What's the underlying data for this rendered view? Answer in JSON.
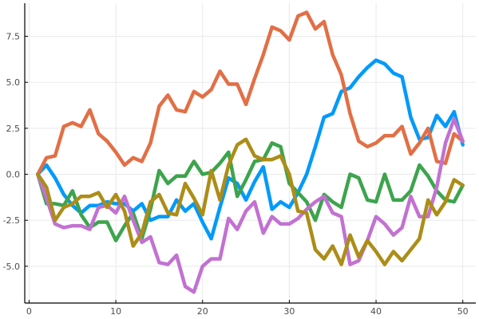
{
  "chart_data": {
    "type": "line",
    "title": "",
    "xlabel": "",
    "ylabel": "",
    "xlim": [
      -0.5,
      51.5
    ],
    "ylim": [
      -7.0,
      9.3
    ],
    "grid": true,
    "legend": "none",
    "x_ticks": [
      {
        "value": 0,
        "label": "0"
      },
      {
        "value": 10,
        "label": "10"
      },
      {
        "value": 20,
        "label": "20"
      },
      {
        "value": 30,
        "label": "30"
      },
      {
        "value": 40,
        "label": "40"
      },
      {
        "value": 50,
        "label": "50"
      }
    ],
    "y_ticks": [
      {
        "value": -5.0,
        "label": "-5.0"
      },
      {
        "value": -2.5,
        "label": "-2.5"
      },
      {
        "value": 0.0,
        "label": "0.0"
      },
      {
        "value": 2.5,
        "label": "2.5"
      },
      {
        "value": 5.0,
        "label": "5.0"
      },
      {
        "value": 7.5,
        "label": "7.5"
      }
    ],
    "x": [
      1,
      2,
      3,
      4,
      5,
      6,
      7,
      8,
      9,
      10,
      11,
      12,
      13,
      14,
      15,
      16,
      17,
      18,
      19,
      20,
      21,
      22,
      23,
      24,
      25,
      26,
      27,
      28,
      29,
      30,
      31,
      32,
      33,
      34,
      35,
      36,
      37,
      38,
      39,
      40,
      41,
      42,
      43,
      44,
      45,
      46,
      47,
      48,
      49,
      50
    ],
    "series": [
      {
        "color": "#009AFA",
        "values": [
          0.0,
          0.5,
          -0.2,
          -1.1,
          -1.7,
          -2.1,
          -1.7,
          -1.7,
          -1.5,
          -1.6,
          -1.6,
          -2.0,
          -1.6,
          -2.5,
          -2.3,
          -2.3,
          -1.4,
          -2.0,
          -1.6,
          -2.6,
          -3.5,
          -1.8,
          -0.2,
          -0.5,
          -1.4,
          -0.4,
          0.4,
          -1.9,
          -1.5,
          -1.8,
          -1.0,
          0.0,
          1.5,
          3.1,
          3.3,
          4.5,
          4.7,
          5.3,
          5.8,
          6.2,
          6.0,
          5.5,
          5.3,
          3.1,
          1.9,
          2.0,
          3.2,
          2.6,
          3.4,
          1.6
        ]
      },
      {
        "color": "#E26F46",
        "values": [
          0.0,
          0.9,
          1.0,
          2.6,
          2.8,
          2.6,
          3.5,
          2.2,
          1.8,
          1.2,
          0.5,
          0.9,
          0.7,
          1.7,
          3.7,
          4.3,
          3.5,
          3.4,
          4.5,
          4.2,
          4.6,
          5.6,
          4.9,
          4.9,
          3.8,
          5.2,
          6.5,
          8.0,
          7.8,
          7.3,
          8.6,
          8.8,
          7.9,
          8.3,
          6.5,
          5.4,
          3.3,
          1.8,
          1.5,
          1.7,
          2.1,
          2.1,
          2.6,
          1.1,
          1.7,
          2.5,
          0.7,
          0.6,
          2.2,
          1.8
        ]
      },
      {
        "color": "#3DA44D",
        "values": [
          0.0,
          -1.6,
          -1.6,
          -1.7,
          -0.9,
          -2.2,
          -2.9,
          -2.6,
          -2.6,
          -3.6,
          -2.8,
          -2.1,
          -3.5,
          -1.9,
          0.2,
          -0.5,
          -0.1,
          -0.1,
          0.7,
          0.0,
          0.1,
          0.6,
          1.2,
          -1.2,
          -0.3,
          0.7,
          0.8,
          1.7,
          1.5,
          -0.5,
          -1.0,
          -1.5,
          -2.5,
          -1.1,
          -1.5,
          -1.8,
          0.0,
          -0.2,
          -1.4,
          -1.5,
          0.0,
          -1.4,
          -1.4,
          -0.9,
          0.5,
          -0.1,
          -0.9,
          -1.4,
          -1.5,
          -0.6
        ]
      },
      {
        "color": "#C271D2",
        "values": [
          0.0,
          -1.3,
          -2.7,
          -2.9,
          -2.8,
          -2.8,
          -3.0,
          -1.8,
          -1.7,
          -2.1,
          -1.2,
          -2.5,
          -3.7,
          -3.4,
          -4.8,
          -4.9,
          -4.4,
          -6.1,
          -6.4,
          -5.0,
          -4.6,
          -4.6,
          -2.4,
          -3.0,
          -2.0,
          -1.5,
          -3.2,
          -2.3,
          -2.7,
          -2.7,
          -2.4,
          -1.9,
          -1.5,
          -1.2,
          -2.1,
          -2.3,
          -4.9,
          -4.7,
          -3.6,
          -2.3,
          -2.7,
          -3.3,
          -2.9,
          -1.2,
          -2.3,
          -2.3,
          -0.7,
          1.7,
          3.0,
          1.8
        ]
      },
      {
        "color": "#AC8D18",
        "values": [
          0.0,
          -0.7,
          -2.5,
          -1.8,
          -1.6,
          -1.2,
          -1.2,
          -1.0,
          -1.8,
          -1.1,
          -2.0,
          -3.9,
          -3.2,
          -1.5,
          -1.1,
          -2.1,
          -2.2,
          -0.5,
          -1.3,
          -2.2,
          0.2,
          -1.4,
          0.5,
          1.6,
          1.9,
          1.0,
          0.8,
          0.8,
          1.0,
          0.0,
          -2.0,
          -2.1,
          -4.1,
          -4.6,
          -3.9,
          -4.9,
          -3.3,
          -4.5,
          -3.6,
          -4.2,
          -4.9,
          -4.2,
          -4.7,
          -4.1,
          -3.5,
          -1.4,
          -2.2,
          -1.5,
          -0.3,
          -0.6
        ]
      }
    ]
  }
}
